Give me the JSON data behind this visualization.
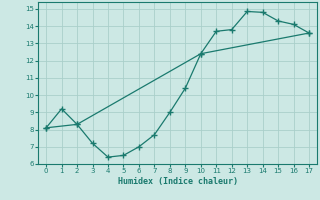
{
  "xlabel": "Humidex (Indice chaleur)",
  "line_color": "#1a7a6e",
  "background_color": "#cce8e4",
  "grid_color": "#aacfca",
  "xlim": [
    -0.5,
    17.5
  ],
  "ylim": [
    6,
    15.4
  ],
  "xticks": [
    0,
    1,
    2,
    3,
    4,
    5,
    6,
    7,
    8,
    9,
    10,
    11,
    12,
    13,
    14,
    15,
    16,
    17
  ],
  "yticks": [
    6,
    7,
    8,
    9,
    10,
    11,
    12,
    13,
    14,
    15
  ],
  "x_upper": [
    0,
    1,
    2,
    10,
    11,
    12,
    13,
    14,
    15,
    16,
    17
  ],
  "y_upper": [
    8.1,
    9.2,
    8.3,
    12.4,
    13.7,
    13.8,
    14.85,
    14.8,
    14.3,
    14.1,
    13.6
  ],
  "x_lower": [
    0,
    2,
    3,
    4,
    5,
    6,
    7,
    8,
    9,
    10,
    17
  ],
  "y_lower": [
    8.1,
    8.3,
    7.2,
    6.4,
    6.5,
    7.0,
    7.7,
    9.0,
    10.4,
    12.4,
    13.6
  ]
}
